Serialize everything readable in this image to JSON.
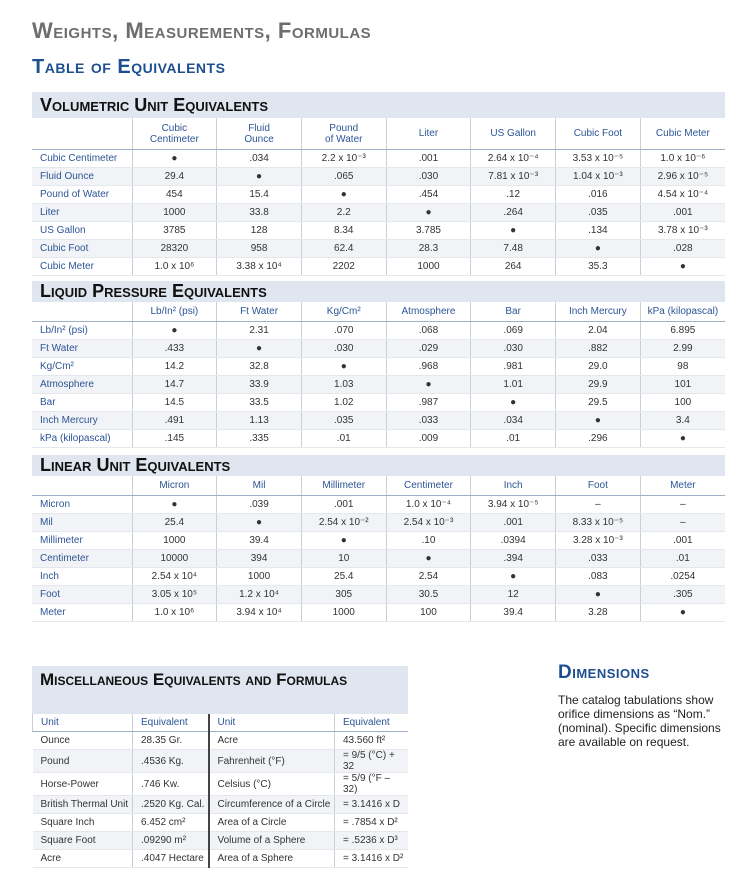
{
  "header": {
    "title": "Weights, Measurements, Formulas",
    "subtitle": "Table of Equivalents"
  },
  "tables": [
    {
      "title": "Volumetric Unit Equivalents",
      "columns": [
        "Cubic\nCentimeter",
        "Fluid\nOunce",
        "Pound\nof Water",
        "Liter",
        "US Gallon",
        "Cubic Foot",
        "Cubic Meter"
      ],
      "rows": [
        {
          "label": "Cubic Centimeter",
          "cells": [
            "●",
            ".034",
            "2.2 x 10⁻³",
            ".001",
            "2.64 x 10⁻⁴",
            "3.53 x 10⁻⁵",
            "1.0 x 10⁻⁶"
          ]
        },
        {
          "label": "Fluid Ounce",
          "cells": [
            "29.4",
            "●",
            ".065",
            ".030",
            "7.81 x 10⁻³",
            "1.04 x 10⁻³",
            "2.96 x 10⁻⁵"
          ]
        },
        {
          "label": "Pound of Water",
          "cells": [
            "454",
            "15.4",
            "●",
            ".454",
            ".12",
            ".016",
            "4.54 x 10⁻⁴"
          ]
        },
        {
          "label": "Liter",
          "cells": [
            "1000",
            "33.8",
            "2.2",
            "●",
            ".264",
            ".035",
            ".001"
          ]
        },
        {
          "label": "US Gallon",
          "cells": [
            "3785",
            "128",
            "8.34",
            "3.785",
            "●",
            ".134",
            "3.78 x 10⁻³"
          ]
        },
        {
          "label": "Cubic Foot",
          "cells": [
            "28320",
            "958",
            "62.4",
            "28.3",
            "7.48",
            "●",
            ".028"
          ]
        },
        {
          "label": "Cubic Meter",
          "cells": [
            "1.0 x 10⁶",
            "3.38 x 10⁴",
            "2202",
            "1000",
            "264",
            "35.3",
            "●"
          ]
        }
      ]
    },
    {
      "title": "Liquid Pressure Equivalents",
      "columns": [
        "Lb/In² (psi)",
        "Ft Water",
        "Kg/Cm²",
        "Atmosphere",
        "Bar",
        "Inch Mercury",
        "kPa (kilopascal)"
      ],
      "rows": [
        {
          "label": "Lb/In² (psi)",
          "cells": [
            "●",
            "2.31",
            ".070",
            ".068",
            ".069",
            "2.04",
            "6.895"
          ]
        },
        {
          "label": "Ft Water",
          "cells": [
            ".433",
            "●",
            ".030",
            ".029",
            ".030",
            ".882",
            "2.99"
          ]
        },
        {
          "label": "Kg/Cm²",
          "cells": [
            "14.2",
            "32.8",
            "●",
            ".968",
            ".981",
            "29.0",
            "98"
          ]
        },
        {
          "label": "Atmosphere",
          "cells": [
            "14.7",
            "33.9",
            "1.03",
            "●",
            "1.01",
            "29.9",
            "101"
          ]
        },
        {
          "label": "Bar",
          "cells": [
            "14.5",
            "33.5",
            "1.02",
            ".987",
            "●",
            "29.5",
            "100"
          ]
        },
        {
          "label": "Inch Mercury",
          "cells": [
            ".491",
            "1.13",
            ".035",
            ".033",
            ".034",
            "●",
            "3.4"
          ]
        },
        {
          "label": "kPa (kilopascal)",
          "cells": [
            ".145",
            ".335",
            ".01",
            ".009",
            ".01",
            ".296",
            "●"
          ]
        }
      ]
    },
    {
      "title": "Linear Unit Equivalents",
      "columns": [
        "Micron",
        "Mil",
        "Millimeter",
        "Centimeter",
        "Inch",
        "Foot",
        "Meter"
      ],
      "rows": [
        {
          "label": "Micron",
          "cells": [
            "●",
            ".039",
            ".001",
            "1.0 x 10⁻⁴",
            "3.94 x 10⁻⁵",
            "–",
            "–"
          ]
        },
        {
          "label": "Mil",
          "cells": [
            "25.4",
            "●",
            "2.54 x 10⁻²",
            "2.54 x 10⁻³",
            ".001",
            "8.33 x 10⁻⁵",
            "–"
          ]
        },
        {
          "label": "Millimeter",
          "cells": [
            "1000",
            "39.4",
            "●",
            ".10",
            ".0394",
            "3.28 x 10⁻³",
            ".001"
          ]
        },
        {
          "label": "Centimeter",
          "cells": [
            "10000",
            "394",
            "10",
            "●",
            ".394",
            ".033",
            ".01"
          ]
        },
        {
          "label": "Inch",
          "cells": [
            "2.54 x 10⁴",
            "1000",
            "25.4",
            "2.54",
            "●",
            ".083",
            ".0254"
          ]
        },
        {
          "label": "Foot",
          "cells": [
            "3.05 x 10⁵",
            "1.2 x 10⁴",
            "305",
            "30.5",
            "12",
            "●",
            ".305"
          ]
        },
        {
          "label": "Meter",
          "cells": [
            "1.0 x 10⁶",
            "3.94 x 10⁴",
            "1000",
            "100",
            "39.4",
            "3.28",
            "●"
          ]
        }
      ]
    }
  ],
  "misc": {
    "title": "Miscellaneous Equivalents and Formulas",
    "columns": [
      "Unit",
      "Equivalent",
      "Unit",
      "Equivalent"
    ],
    "rows": [
      [
        "Ounce",
        "28.35 Gr.",
        "Acre",
        "43.560 ft²"
      ],
      [
        "Pound",
        ".4536 Kg.",
        "Fahrenheit (°F)",
        "= 9/5 (°C) + 32"
      ],
      [
        "Horse-Power",
        ".746 Kw.",
        "Celsius (°C)",
        "= 5/9 (°F – 32)"
      ],
      [
        "British Thermal Unit",
        ".2520 Kg. Cal.",
        "Circumference of a Circle",
        "= 3.1416 x D"
      ],
      [
        "Square Inch",
        "6.452 cm²",
        "Area of a Circle",
        "= .7854 x D²"
      ],
      [
        "Square Foot",
        ".09290 m²",
        "Volume of a Sphere",
        "= .5236 x D³"
      ],
      [
        "Acre",
        ".4047 Hectare",
        "Area of a Sphere",
        "= 3.1416 x D²"
      ]
    ]
  },
  "dimensions": {
    "title": "Dimensions",
    "text": "The catalog tabulations show orifice dimensions as “Nom.” (nominal). Specific dimensions are available on request."
  }
}
